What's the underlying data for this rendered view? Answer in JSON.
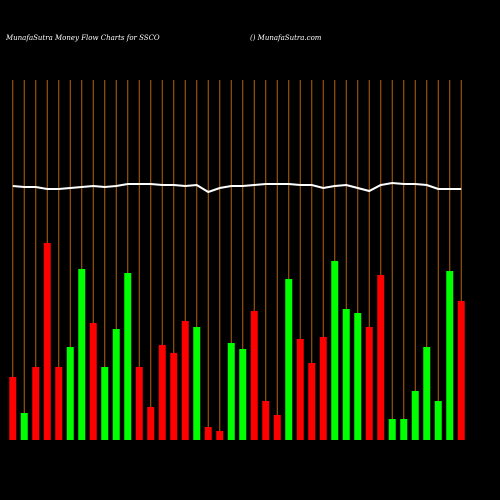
{
  "chart_data": {
    "type": "bar",
    "title": "MunafaSutra  Money Flow  Charts for SSCO",
    "subtitle": "() MunafaSutra.com",
    "categories": [
      null,
      null,
      null,
      null,
      null,
      null,
      null,
      null,
      null,
      null,
      null,
      null,
      null,
      null,
      null,
      null,
      null,
      null,
      null,
      null,
      null,
      null,
      null,
      null,
      null,
      null,
      null,
      null,
      null,
      null,
      null,
      null,
      null,
      null,
      null,
      null,
      null,
      null,
      null,
      null
    ],
    "values": [
      63,
      27,
      73,
      197,
      73,
      93,
      171,
      117,
      73,
      111,
      167,
      73,
      33,
      95,
      87,
      119,
      113,
      13,
      9,
      97,
      91,
      129,
      39,
      25,
      161,
      101,
      77,
      103,
      179,
      131,
      127,
      113,
      165,
      21,
      21,
      49,
      93,
      39,
      169,
      139
    ],
    "colors": [
      "#ff0000",
      "#00ff00",
      "#ff0000",
      "#ff0000",
      "#ff0000",
      "#00ff00",
      "#00ff00",
      "#ff0000",
      "#00ff00",
      "#00ff00",
      "#00ff00",
      "#ff0000",
      "#ff0000",
      "#ff0000",
      "#ff0000",
      "#ff0000",
      "#00ff00",
      "#ff0000",
      "#ff0000",
      "#00ff00",
      "#00ff00",
      "#ff0000",
      "#ff0000",
      "#ff0000",
      "#00ff00",
      "#ff0000",
      "#ff0000",
      "#ff0000",
      "#00ff00",
      "#00ff00",
      "#00ff00",
      "#ff0000",
      "#ff0000",
      "#00ff00",
      "#00ff00",
      "#00ff00",
      "#00ff00",
      "#00ff00",
      "#00ff00",
      "#ff0000"
    ],
    "line": {
      "color": "#ffffff",
      "values": [
        254,
        253,
        253,
        251,
        251,
        252,
        253,
        254,
        253,
        254,
        256,
        256,
        256,
        255,
        255,
        254,
        255,
        248,
        252,
        254,
        254,
        255,
        256,
        256,
        256,
        255,
        255,
        252,
        254,
        255,
        252,
        249,
        255,
        257,
        256,
        256,
        255,
        251,
        251,
        251
      ]
    },
    "ylim": [
      0,
      360
    ],
    "grid": true,
    "grid_color": "#b8620a"
  }
}
